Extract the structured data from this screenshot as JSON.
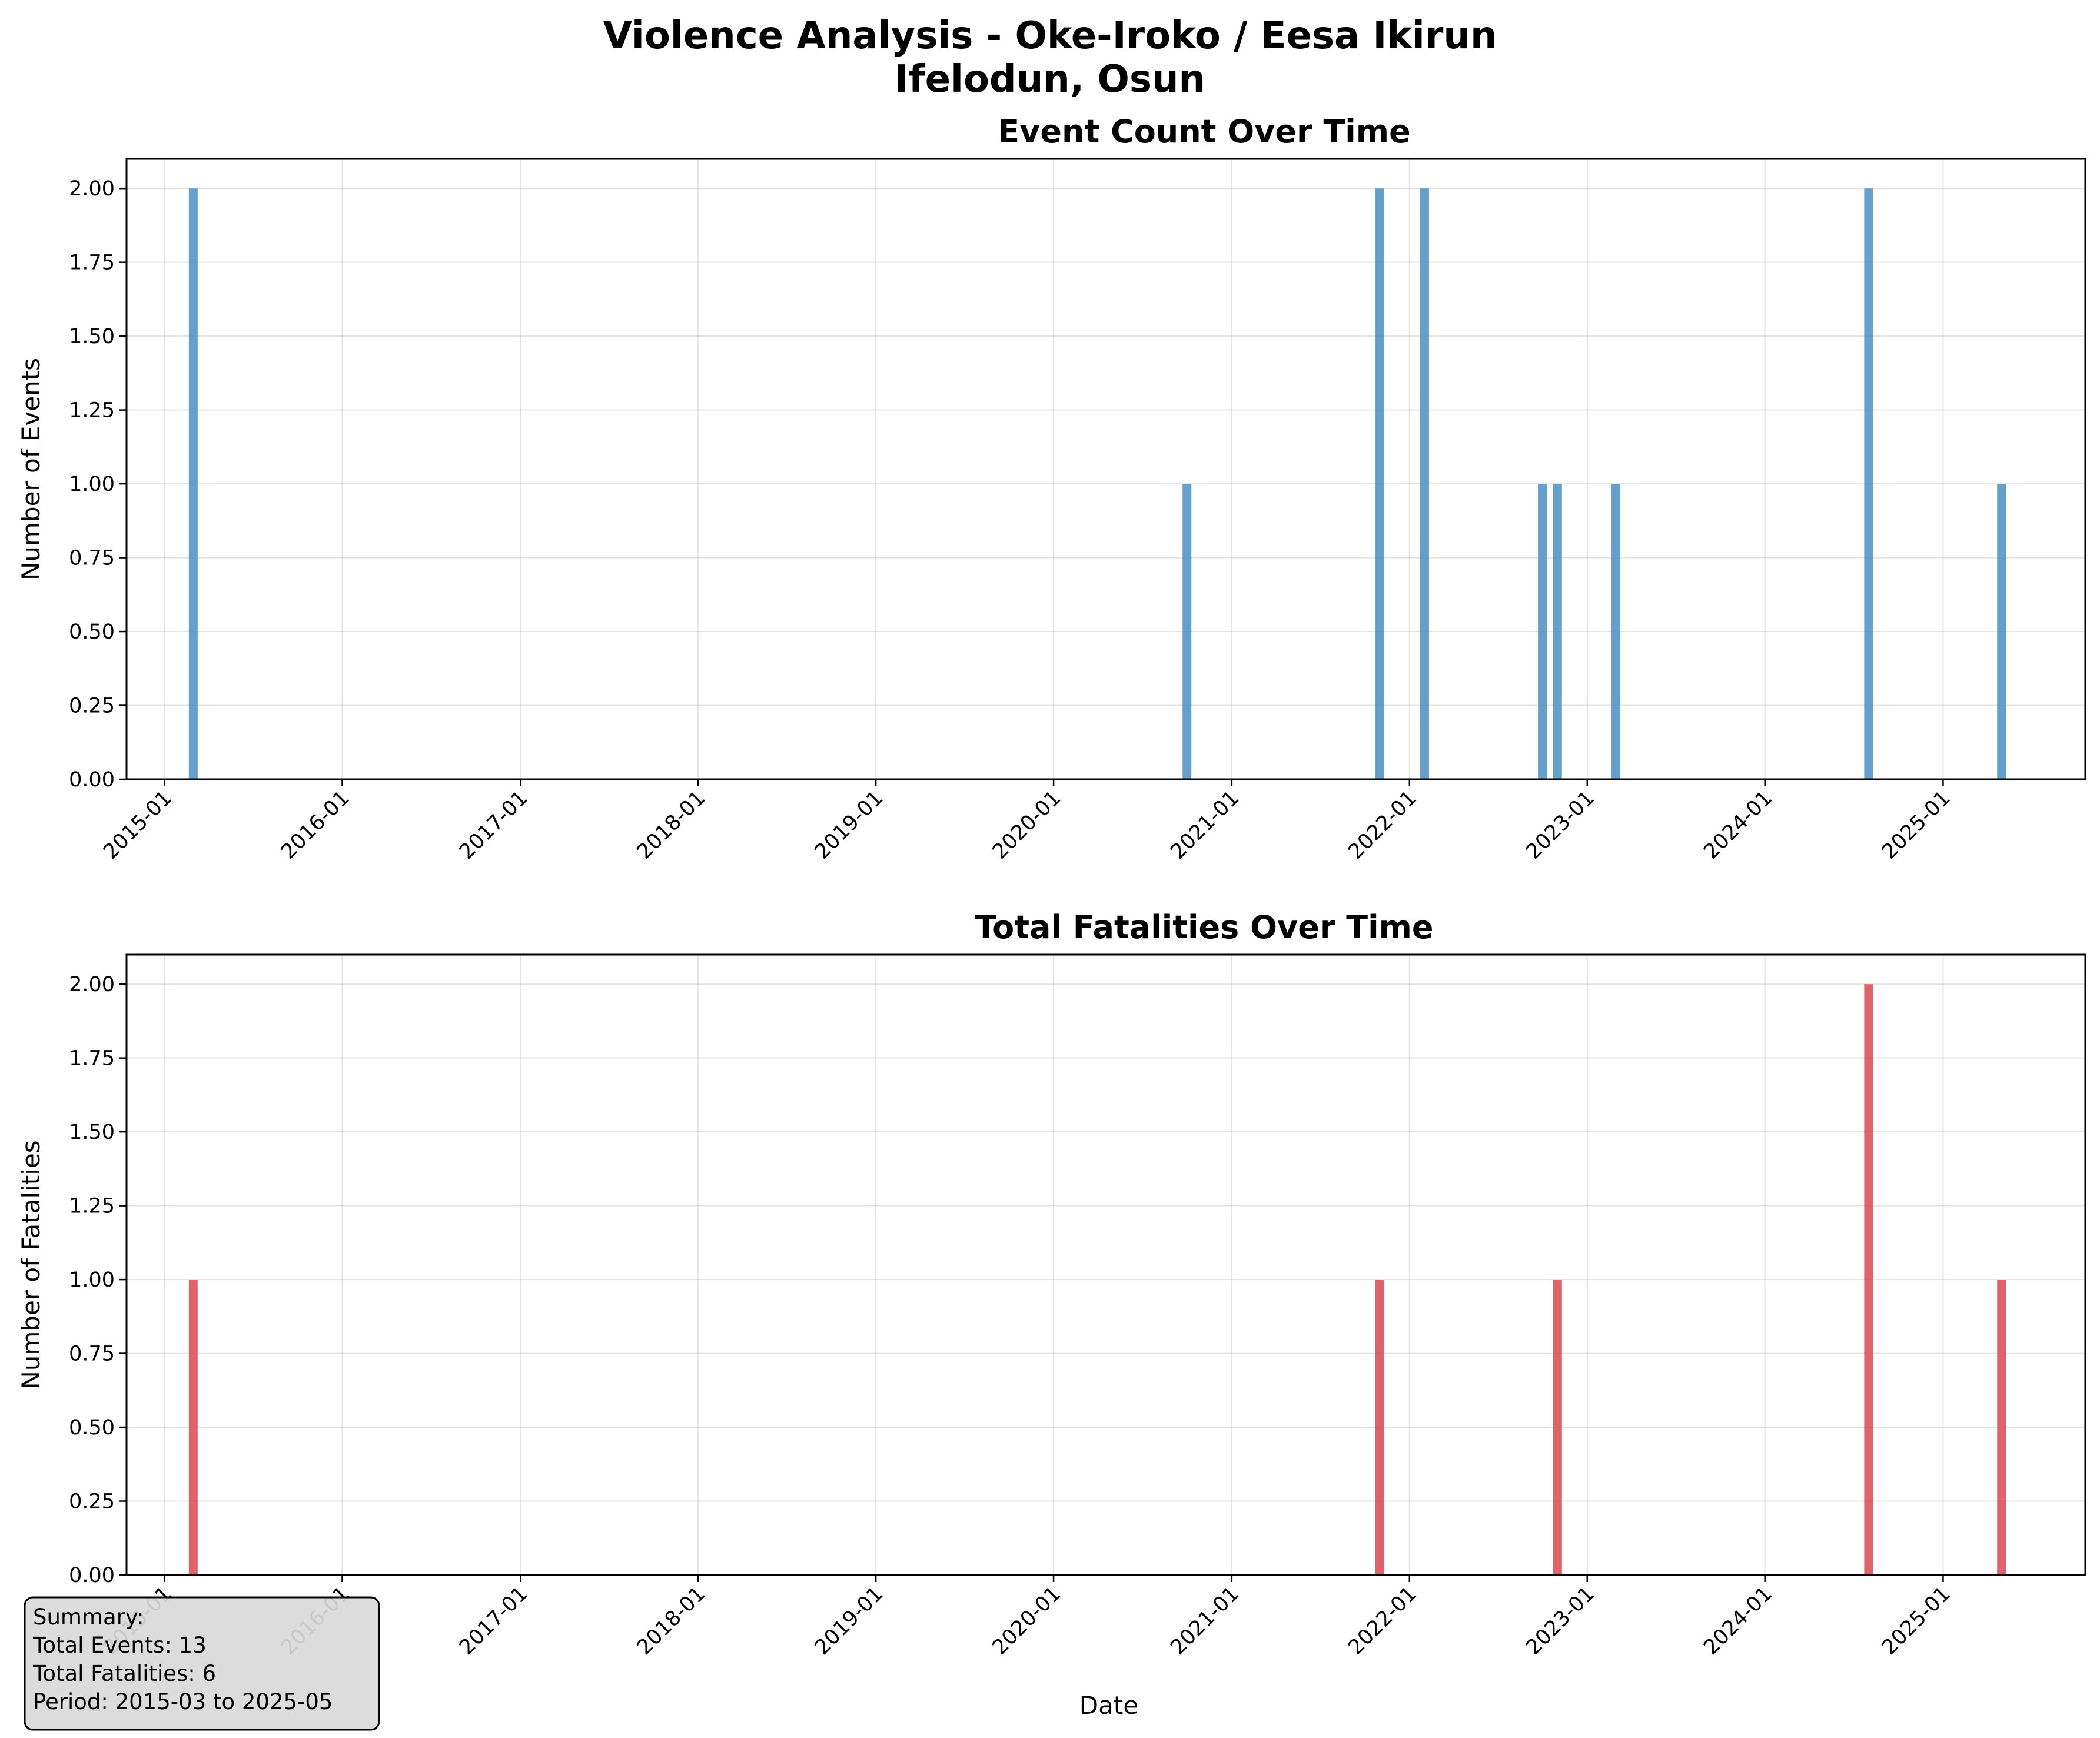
{
  "figure": {
    "title_line1": "Violence Analysis - Oke-Iroko / Eesa Ikirun",
    "title_line2": "Ifelodun, Osun"
  },
  "chart_data": [
    {
      "type": "bar",
      "title": "Event Count Over Time",
      "xlabel": "",
      "ylabel": "Number of Events",
      "x_axis_type": "date",
      "xlim": [
        "2014-10-15",
        "2025-10-20"
      ],
      "ylim": [
        0,
        2.1
      ],
      "xticks": [
        "2015-01",
        "2016-01",
        "2017-01",
        "2018-01",
        "2019-01",
        "2020-01",
        "2021-01",
        "2022-01",
        "2023-01",
        "2024-01",
        "2025-01"
      ],
      "yticks": [
        "0.00",
        "0.25",
        "0.50",
        "0.75",
        "1.00",
        "1.25",
        "1.50",
        "1.75",
        "2.00"
      ],
      "grid": true,
      "color": "#4a8ec2",
      "series": [
        {
          "x": [
            "2015-03",
            "2020-10",
            "2021-11",
            "2022-02",
            "2022-10",
            "2022-11",
            "2023-03",
            "2024-08",
            "2025-05"
          ],
          "values": [
            2,
            1,
            2,
            2,
            1,
            1,
            1,
            2,
            1
          ]
        }
      ]
    },
    {
      "type": "bar",
      "title": "Total Fatalities Over Time",
      "xlabel": "Date",
      "ylabel": "Number of Fatalities",
      "x_axis_type": "date",
      "xlim": [
        "2014-10-15",
        "2025-10-20"
      ],
      "ylim": [
        0,
        2.1
      ],
      "xticks": [
        "2015-01",
        "2016-01",
        "2017-01",
        "2018-01",
        "2019-01",
        "2020-01",
        "2021-01",
        "2022-01",
        "2023-01",
        "2024-01",
        "2025-01"
      ],
      "yticks": [
        "0.00",
        "0.25",
        "0.50",
        "0.75",
        "1.00",
        "1.25",
        "1.50",
        "1.75",
        "2.00"
      ],
      "grid": true,
      "color": "#d9494f",
      "series": [
        {
          "x": [
            "2015-03",
            "2021-11",
            "2022-11",
            "2024-08",
            "2025-05"
          ],
          "values": [
            1,
            1,
            1,
            2,
            1
          ]
        }
      ]
    }
  ],
  "summary": {
    "heading": "Summary:",
    "total_events": "Total Events: 13",
    "total_fatalities": "Total Fatalities: 6",
    "period": "Period: 2015-03 to 2025-05"
  }
}
